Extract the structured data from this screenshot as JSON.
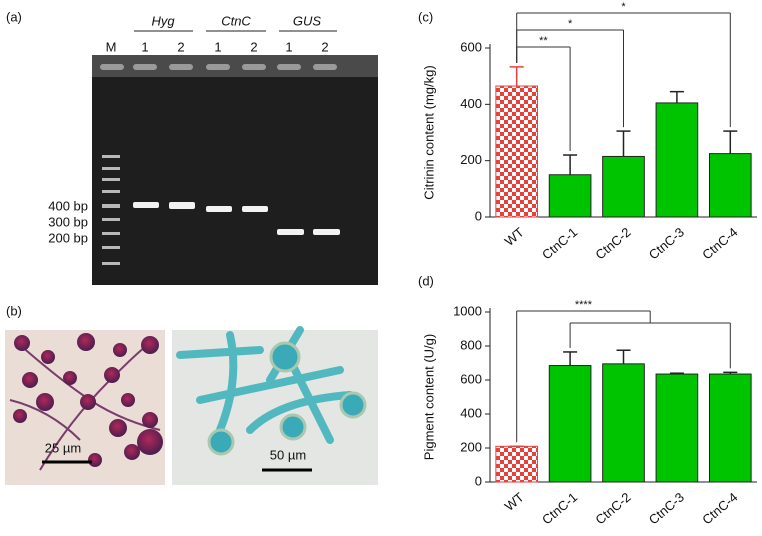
{
  "gel": {
    "panel": "(a)",
    "marker": "M",
    "groups": [
      "Hyg",
      "CtnC",
      "GUS"
    ],
    "lanes": [
      "1",
      "2",
      "1",
      "2",
      "1",
      "2"
    ],
    "sizes": [
      "400 bp",
      "300 bp",
      "200 bp"
    ]
  },
  "micrographs": {
    "panel": "(b)",
    "scale_bars": [
      "25 µm",
      "50 µm"
    ]
  },
  "chart_data": [
    {
      "type": "bar",
      "panel": "(c)",
      "ylabel": "Citrinin content (mg/kg)",
      "categories": [
        "WT",
        "CtnC-1",
        "CtnC-2",
        "CtnC-3",
        "CtnC-4"
      ],
      "values": [
        465,
        150,
        215,
        405,
        225
      ],
      "errors": [
        68,
        70,
        90,
        40,
        80
      ],
      "colors": [
        "#e8413c",
        "#00c400",
        "#00c400",
        "#00c400",
        "#00c400"
      ],
      "patterned": [
        true,
        false,
        false,
        false,
        false
      ],
      "ylim": [
        0,
        600
      ],
      "yticks": [
        0,
        200,
        400,
        600
      ],
      "annotations": [
        {
          "text": "**",
          "from": 0,
          "to": 1
        },
        {
          "text": "*",
          "from": 0,
          "to": 2
        },
        {
          "text": "*",
          "from": 0,
          "to": 4
        }
      ]
    },
    {
      "type": "bar",
      "panel": "(d)",
      "ylabel": "Pigment content (U/g)",
      "categories": [
        "WT",
        "CtnC-1",
        "CtnC-2",
        "CtnC-3",
        "CtnC-4"
      ],
      "values": [
        210,
        685,
        695,
        635,
        635
      ],
      "errors": [
        0,
        80,
        80,
        5,
        10
      ],
      "colors": [
        "#e8413c",
        "#00c400",
        "#00c400",
        "#00c400",
        "#00c400"
      ],
      "patterned": [
        true,
        false,
        false,
        false,
        false
      ],
      "ylim": [
        0,
        1000
      ],
      "yticks": [
        0,
        200,
        400,
        600,
        800,
        1000
      ],
      "annotations": [
        {
          "text": "****",
          "from": 0,
          "to": [
            1,
            4
          ]
        }
      ]
    }
  ]
}
